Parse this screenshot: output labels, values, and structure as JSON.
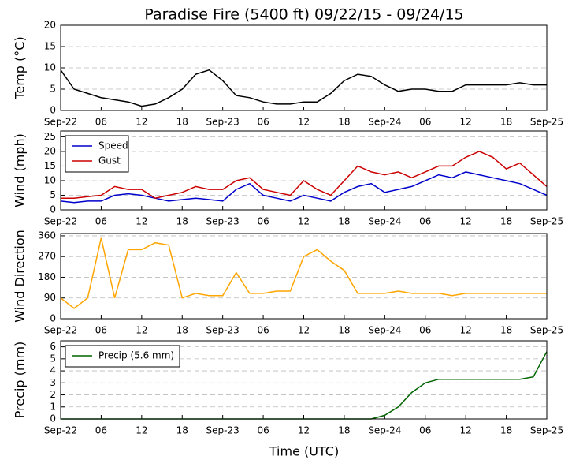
{
  "chart_data": [
    {
      "type": "line",
      "title": "Paradise Fire (5400 ft) 09/22/15 - 09/24/15",
      "ylabel": "Temp (°C)",
      "x": [
        0,
        2,
        4,
        6,
        8,
        10,
        12,
        14,
        16,
        18,
        20,
        22,
        24,
        26,
        28,
        30,
        32,
        34,
        36,
        38,
        40,
        42,
        44,
        46,
        48,
        50,
        52,
        54,
        56,
        58,
        60,
        62,
        64,
        66,
        68,
        70,
        72
      ],
      "values": [
        9.5,
        5,
        4,
        3,
        2.5,
        2,
        1,
        1.5,
        3,
        5,
        8.5,
        9.5,
        7,
        3.5,
        3,
        2,
        1.5,
        1.5,
        2,
        2,
        4,
        7,
        8.5,
        8,
        6,
        4.5,
        5,
        5,
        4.5,
        4.5,
        6,
        6,
        6,
        6,
        6.5,
        6,
        6
      ],
      "color": "#000000",
      "xlim": [
        0,
        72
      ],
      "ylim": [
        0,
        20
      ],
      "yticks": [
        0,
        5,
        10,
        15,
        20
      ],
      "xticks": [
        {
          "value": 0,
          "label": "Sep-22"
        },
        {
          "value": 6,
          "label": "06"
        },
        {
          "value": 12,
          "label": "12"
        },
        {
          "value": 18,
          "label": "18"
        },
        {
          "value": 24,
          "label": "Sep-23"
        },
        {
          "value": 30,
          "label": "06"
        },
        {
          "value": 36,
          "label": "12"
        },
        {
          "value": 42,
          "label": "18"
        },
        {
          "value": 48,
          "label": "Sep-24"
        },
        {
          "value": 54,
          "label": "06"
        },
        {
          "value": 60,
          "label": "12"
        },
        {
          "value": 66,
          "label": "18"
        },
        {
          "value": 72,
          "label": "Sep-25"
        }
      ],
      "grid": true
    },
    {
      "type": "line",
      "ylabel": "Wind (mph)",
      "x": [
        0,
        2,
        4,
        6,
        8,
        10,
        12,
        14,
        16,
        18,
        20,
        22,
        24,
        26,
        28,
        30,
        32,
        34,
        36,
        38,
        40,
        42,
        44,
        46,
        48,
        50,
        52,
        54,
        56,
        58,
        60,
        62,
        64,
        66,
        68,
        70,
        72
      ],
      "series": [
        {
          "name": "Speed",
          "color": "#0000cc",
          "values": [
            3,
            2.5,
            3,
            3,
            5,
            5.5,
            5,
            4,
            3,
            3.5,
            4,
            3.5,
            3,
            7,
            9,
            5,
            4,
            3,
            5,
            4,
            3,
            6,
            8,
            9,
            6,
            7,
            8,
            10,
            12,
            11,
            13,
            12,
            11,
            10,
            9,
            7,
            5
          ]
        },
        {
          "name": "Gust",
          "color": "#cc0000",
          "values": [
            4,
            4,
            4.5,
            5,
            8,
            7,
            7,
            4,
            5,
            6,
            8,
            7,
            7,
            10,
            11,
            7,
            6,
            5,
            10,
            7,
            5,
            10,
            15,
            13,
            12,
            13,
            11,
            13,
            15,
            15,
            18,
            20,
            18,
            14,
            16,
            12,
            8
          ]
        }
      ],
      "xlim": [
        0,
        72
      ],
      "ylim": [
        0,
        27
      ],
      "yticks": [
        0,
        5,
        10,
        15,
        20,
        25
      ],
      "xticks": [
        {
          "value": 0,
          "label": "Sep-22"
        },
        {
          "value": 6,
          "label": "06"
        },
        {
          "value": 12,
          "label": "12"
        },
        {
          "value": 18,
          "label": "18"
        },
        {
          "value": 24,
          "label": "Sep-23"
        },
        {
          "value": 30,
          "label": "06"
        },
        {
          "value": 36,
          "label": "12"
        },
        {
          "value": 42,
          "label": "18"
        },
        {
          "value": 48,
          "label": "Sep-24"
        },
        {
          "value": 54,
          "label": "06"
        },
        {
          "value": 60,
          "label": "12"
        },
        {
          "value": 66,
          "label": "18"
        },
        {
          "value": 72,
          "label": "Sep-25"
        }
      ],
      "grid": true,
      "legend": "upper-left"
    },
    {
      "type": "line",
      "ylabel": "Wind Direction",
      "x": [
        0,
        2,
        4,
        6,
        8,
        10,
        12,
        14,
        16,
        18,
        20,
        22,
        24,
        26,
        28,
        30,
        32,
        34,
        36,
        38,
        40,
        42,
        44,
        46,
        48,
        50,
        52,
        54,
        56,
        58,
        60,
        62,
        64,
        66,
        68,
        70,
        72
      ],
      "values": [
        90,
        45,
        90,
        350,
        90,
        300,
        300,
        330,
        320,
        90,
        110,
        100,
        100,
        200,
        110,
        110,
        120,
        120,
        270,
        300,
        250,
        210,
        110,
        110,
        110,
        120,
        110,
        110,
        110,
        100,
        110,
        110,
        110,
        110,
        110,
        110,
        110
      ],
      "color": "#ffa500",
      "xlim": [
        0,
        72
      ],
      "ylim": [
        0,
        370
      ],
      "yticks": [
        0,
        90,
        180,
        270,
        360
      ],
      "xticks": [
        {
          "value": 0,
          "label": "Sep-22"
        },
        {
          "value": 6,
          "label": "06"
        },
        {
          "value": 12,
          "label": "12"
        },
        {
          "value": 18,
          "label": "18"
        },
        {
          "value": 24,
          "label": "Sep-23"
        },
        {
          "value": 30,
          "label": "06"
        },
        {
          "value": 36,
          "label": "12"
        },
        {
          "value": 42,
          "label": "18"
        },
        {
          "value": 48,
          "label": "Sep-24"
        },
        {
          "value": 54,
          "label": "06"
        },
        {
          "value": 60,
          "label": "12"
        },
        {
          "value": 66,
          "label": "18"
        },
        {
          "value": 72,
          "label": "Sep-25"
        }
      ],
      "grid": true
    },
    {
      "type": "line",
      "ylabel": "Precip (mm)",
      "xlabel": "Time (UTC)",
      "x": [
        0,
        2,
        4,
        6,
        8,
        10,
        12,
        14,
        16,
        18,
        20,
        22,
        24,
        26,
        28,
        30,
        32,
        34,
        36,
        38,
        40,
        42,
        44,
        46,
        48,
        50,
        52,
        54,
        56,
        58,
        60,
        62,
        64,
        66,
        68,
        70,
        72
      ],
      "series": [
        {
          "name": "Precip (5.6 mm)",
          "color": "#006400",
          "values": [
            0,
            0,
            0,
            0,
            0,
            0,
            0,
            0,
            0,
            0,
            0,
            0,
            0,
            0,
            0,
            0,
            0,
            0,
            0,
            0,
            0,
            0,
            0,
            0,
            0.3,
            1,
            2.2,
            3,
            3.3,
            3.3,
            3.3,
            3.3,
            3.3,
            3.3,
            3.3,
            3.5,
            5.6
          ]
        }
      ],
      "xlim": [
        0,
        72
      ],
      "ylim": [
        0,
        6.5
      ],
      "yticks": [
        0,
        1,
        2,
        3,
        4,
        5,
        6
      ],
      "xticks": [
        {
          "value": 0,
          "label": "Sep-22"
        },
        {
          "value": 6,
          "label": "06"
        },
        {
          "value": 12,
          "label": "12"
        },
        {
          "value": 18,
          "label": "18"
        },
        {
          "value": 24,
          "label": "Sep-23"
        },
        {
          "value": 30,
          "label": "06"
        },
        {
          "value": 36,
          "label": "12"
        },
        {
          "value": 42,
          "label": "18"
        },
        {
          "value": 48,
          "label": "Sep-24"
        },
        {
          "value": 54,
          "label": "06"
        },
        {
          "value": 60,
          "label": "12"
        },
        {
          "value": 66,
          "label": "18"
        },
        {
          "value": 72,
          "label": "Sep-25"
        }
      ],
      "grid": true,
      "legend": "upper-left"
    }
  ]
}
